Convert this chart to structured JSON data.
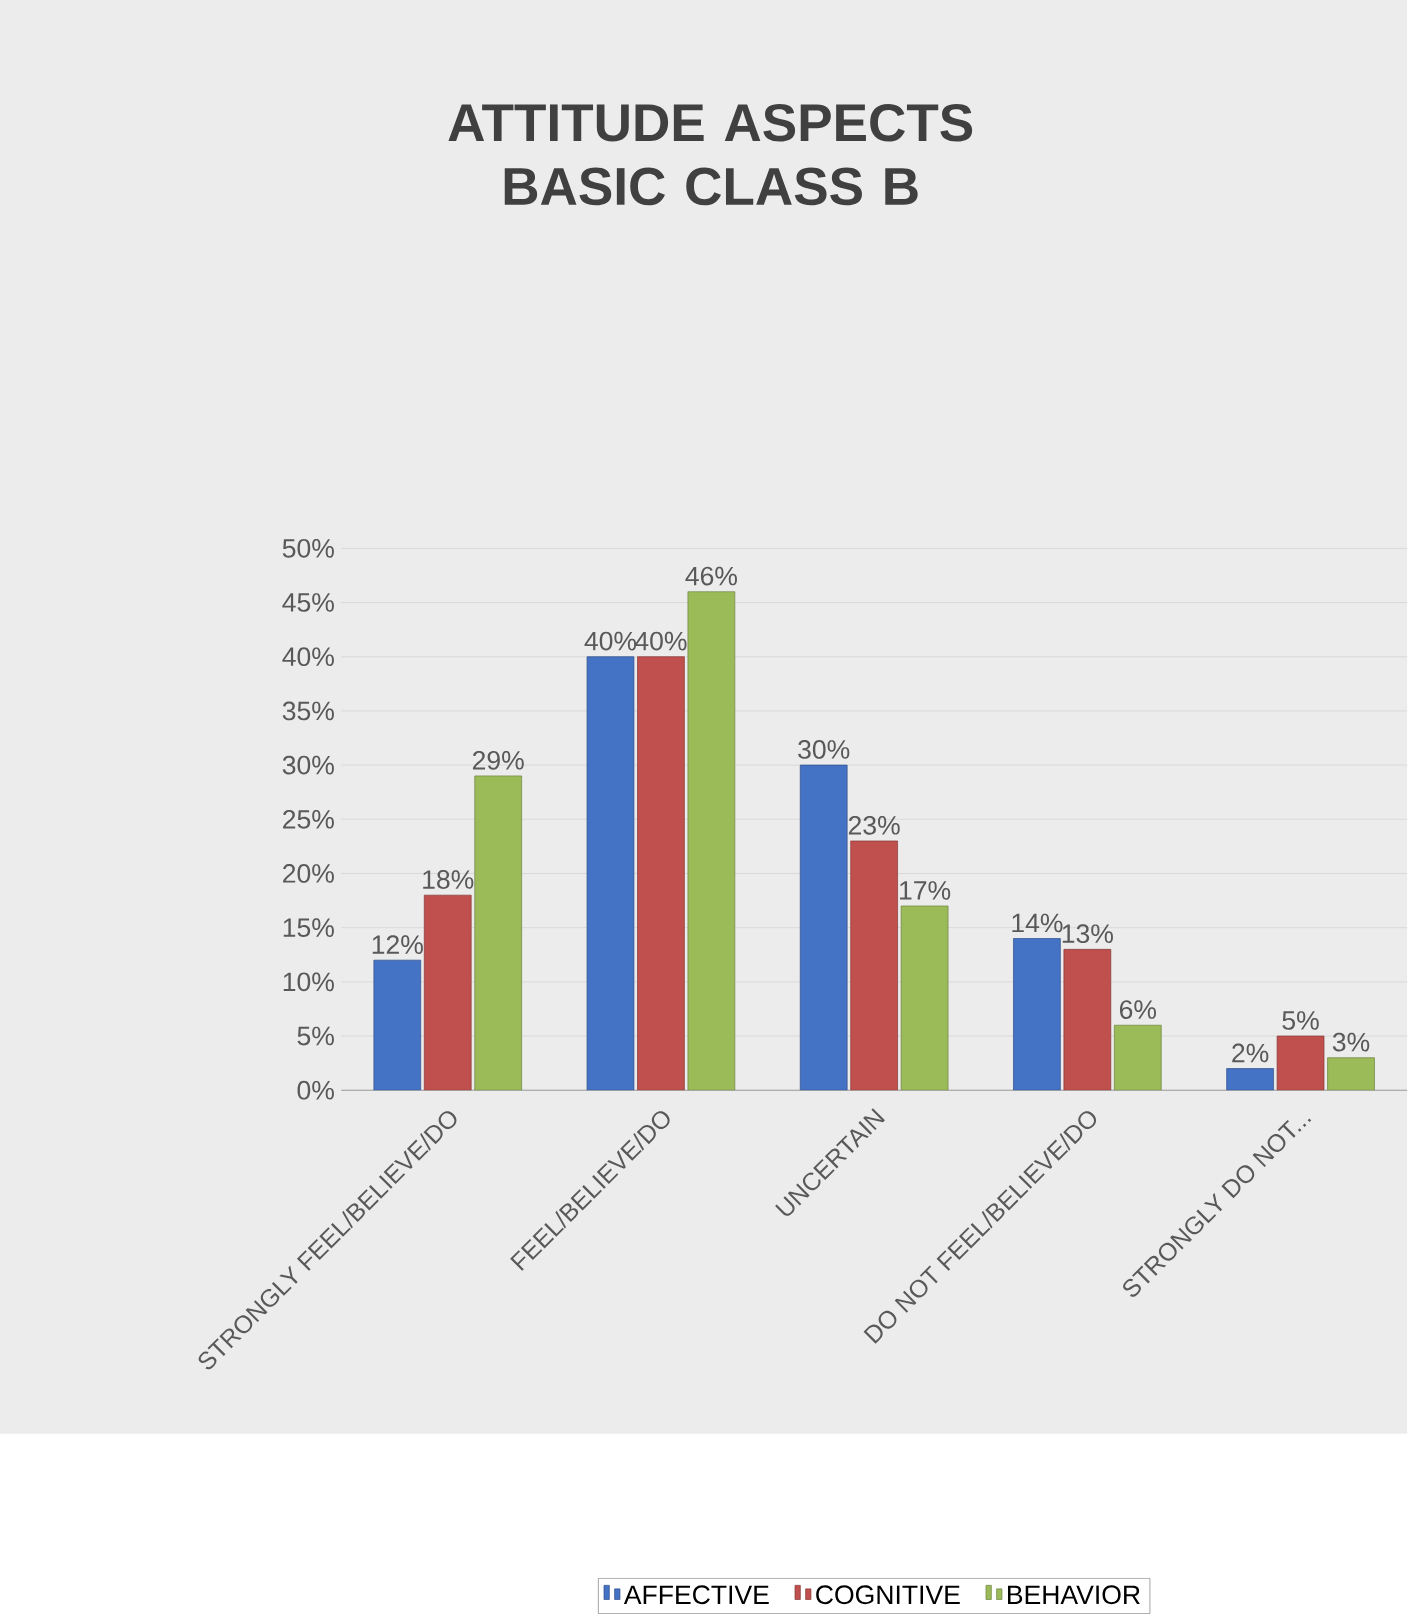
{
  "chart_data": {
    "type": "bar",
    "title": "ATTITUDE ASPECTS BASIC CLASS B",
    "categories": [
      "STRONGLY FEEL/BELIEVE/DO",
      "FEEL/BELIEVE/DO",
      "UNCERTAIN",
      "DO NOT FEEL/BELIEVE/DO",
      "STRONGLY DO NOT..."
    ],
    "series": [
      {
        "name": "AFFECTIVE",
        "color": "#4472c4",
        "values": [
          12,
          40,
          30,
          14,
          2
        ],
        "value_labels": [
          "12%",
          "40%",
          "30%",
          "14%",
          "2%"
        ]
      },
      {
        "name": "COGNITIVE",
        "color": "#c0504d",
        "values": [
          18,
          40,
          23,
          13,
          5
        ],
        "value_labels": [
          "18%",
          "40%",
          "23%",
          "13%",
          "5%"
        ]
      },
      {
        "name": "BEHAVIOR",
        "color": "#9bbb59",
        "values": [
          29,
          46,
          17,
          6,
          3
        ],
        "value_labels": [
          "29%",
          "46%",
          "17%",
          "6%",
          "3%"
        ]
      }
    ],
    "ylim": [
      0,
      50
    ],
    "yticks": [
      {
        "value": 0,
        "label": "0%"
      },
      {
        "value": 5,
        "label": "5%"
      },
      {
        "value": 10,
        "label": "10%"
      },
      {
        "value": 15,
        "label": "15%"
      },
      {
        "value": 20,
        "label": "20%"
      },
      {
        "value": 25,
        "label": "25%"
      },
      {
        "value": 30,
        "label": "30%"
      },
      {
        "value": 35,
        "label": "35%"
      },
      {
        "value": 40,
        "label": "40%"
      },
      {
        "value": 45,
        "label": "45%"
      },
      {
        "value": 50,
        "label": "50%"
      }
    ],
    "grid": "y",
    "legend": "bottom"
  }
}
